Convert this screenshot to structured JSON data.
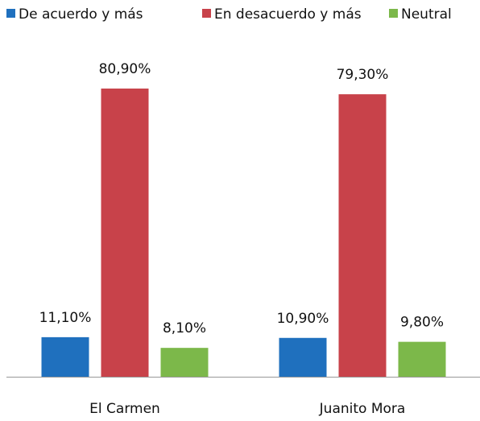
{
  "chart_data": {
    "type": "bar",
    "categories": [
      "El Carmen",
      "Juanito Mora"
    ],
    "series": [
      {
        "name": "De acuerdo y más",
        "color": "#1f70be",
        "values": [
          11.1,
          10.9
        ],
        "value_labels": [
          "11,10%",
          "10,90%"
        ]
      },
      {
        "name": "En desacuerdo y más",
        "color": "#c8424a",
        "values": [
          80.9,
          79.3
        ],
        "value_labels": [
          "80,90%",
          "79,30%"
        ]
      },
      {
        "name": "Neutral",
        "color": "#7cb84a",
        "values": [
          8.1,
          9.8
        ],
        "value_labels": [
          "8,10%",
          "9,80%"
        ]
      }
    ]
  }
}
